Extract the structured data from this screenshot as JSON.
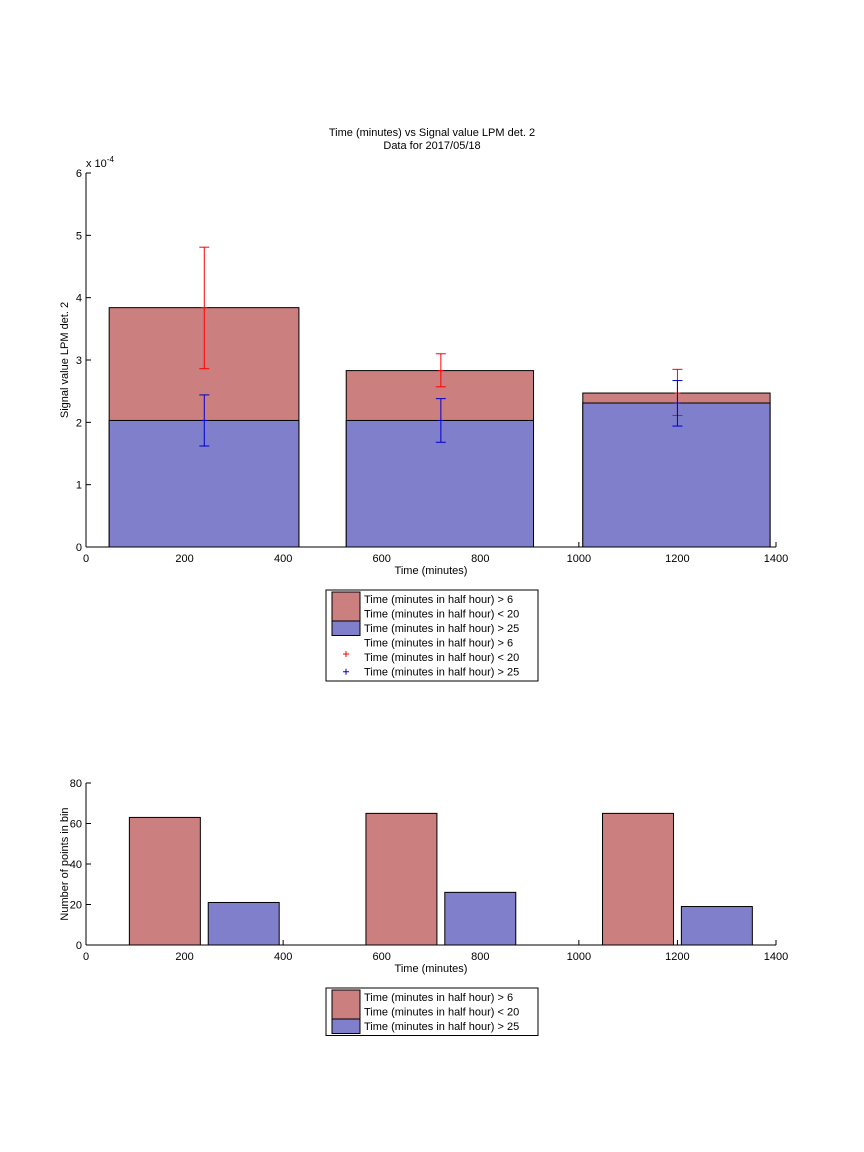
{
  "figure": {
    "title_line1": "Time (minutes) vs Signal value LPM det. 2",
    "title_line2": "Data for 2017/05/18"
  },
  "colors": {
    "red_fill": "#cc7f7f",
    "blue_fill": "#7f7fcc",
    "red_err": "#ff0000",
    "blue_err": "#0000cc",
    "axis": "#000000"
  },
  "chart_data": [
    {
      "type": "bar",
      "title": "Time (minutes) vs Signal value LPM det. 2",
      "subtitle": "Data for 2017/05/18",
      "xlabel": "Time (minutes)",
      "ylabel": "Signal value LPM det. 2",
      "xlim": [
        0,
        1400
      ],
      "ylim": [
        0,
        6
      ],
      "y_multiplier": "x 10",
      "y_multiplier_exp": "-4",
      "xticks": [
        0,
        200,
        400,
        600,
        800,
        1000,
        1200,
        1400
      ],
      "yticks": [
        0,
        1,
        2,
        3,
        4,
        5,
        6
      ],
      "bins": [
        [
          47,
          432
        ],
        [
          528,
          908
        ],
        [
          1008,
          1388
        ]
      ],
      "series": [
        {
          "name": "Time (minutes in half hour) > 6 Time (minutes in half hour) < 20",
          "fill": "red_fill",
          "values": [
            3.84,
            2.83,
            2.47
          ]
        },
        {
          "name": "Time (minutes in half hour) > 25",
          "fill": "blue_fill",
          "values": [
            2.03,
            2.03,
            2.31
          ]
        }
      ],
      "errorbars": [
        {
          "name": "Time (minutes in half hour) > 6 Time (minutes in half hour) < 20",
          "color": "red_err",
          "x": [
            240,
            720,
            1200
          ],
          "center": [
            3.84,
            2.83,
            2.47
          ],
          "low": [
            2.86,
            2.57,
            2.11
          ],
          "high": [
            4.81,
            3.1,
            2.85
          ]
        },
        {
          "name": "Time (minutes in half hour) > 25",
          "color": "blue_err",
          "x": [
            240,
            720,
            1200
          ],
          "center": [
            2.03,
            2.03,
            2.31
          ],
          "low": [
            1.62,
            1.68,
            1.94
          ],
          "high": [
            2.44,
            2.38,
            2.67
          ]
        }
      ],
      "legend": [
        {
          "kind": "patch",
          "fill": "red_fill",
          "lines": [
            "Time (minutes in half hour) > 6",
            "Time (minutes in half hour) < 20"
          ]
        },
        {
          "kind": "patch",
          "fill": "blue_fill",
          "lines": [
            "Time (minutes in half hour) > 25"
          ]
        },
        {
          "kind": "marker",
          "color": "red_err",
          "lines": [
            "Time (minutes in half hour) > 6",
            "Time (minutes in half hour) < 20"
          ]
        },
        {
          "kind": "marker",
          "color": "blue_err",
          "lines": [
            "Time (minutes in half hour) > 25"
          ]
        }
      ],
      "legend_placement": "below"
    },
    {
      "type": "bar",
      "xlabel": "Time (minutes)",
      "ylabel": "Number of points in bin",
      "xlim": [
        0,
        1400
      ],
      "ylim": [
        0,
        80
      ],
      "xticks": [
        0,
        200,
        400,
        600,
        800,
        1000,
        1200,
        1400
      ],
      "yticks": [
        0,
        20,
        40,
        60,
        80
      ],
      "series": [
        {
          "name": "Time (minutes in half hour) > 6 Time (minutes in half hour) < 20",
          "fill": "red_fill",
          "bars": [
            [
              88,
              232
            ],
            [
              568,
              712
            ],
            [
              1048,
              1192
            ]
          ],
          "values": [
            63,
            65,
            65
          ]
        },
        {
          "name": "Time (minutes in half hour) > 25",
          "fill": "blue_fill",
          "bars": [
            [
              248,
              392
            ],
            [
              728,
              872
            ],
            [
              1208,
              1352
            ]
          ],
          "values": [
            21,
            26,
            19
          ]
        }
      ],
      "legend": [
        {
          "kind": "patch",
          "fill": "red_fill",
          "lines": [
            "Time (minutes in half hour) > 6",
            "Time (minutes in half hour) < 20"
          ]
        },
        {
          "kind": "patch",
          "fill": "blue_fill",
          "lines": [
            "Time (minutes in half hour) > 25"
          ]
        }
      ],
      "legend_placement": "below"
    }
  ]
}
